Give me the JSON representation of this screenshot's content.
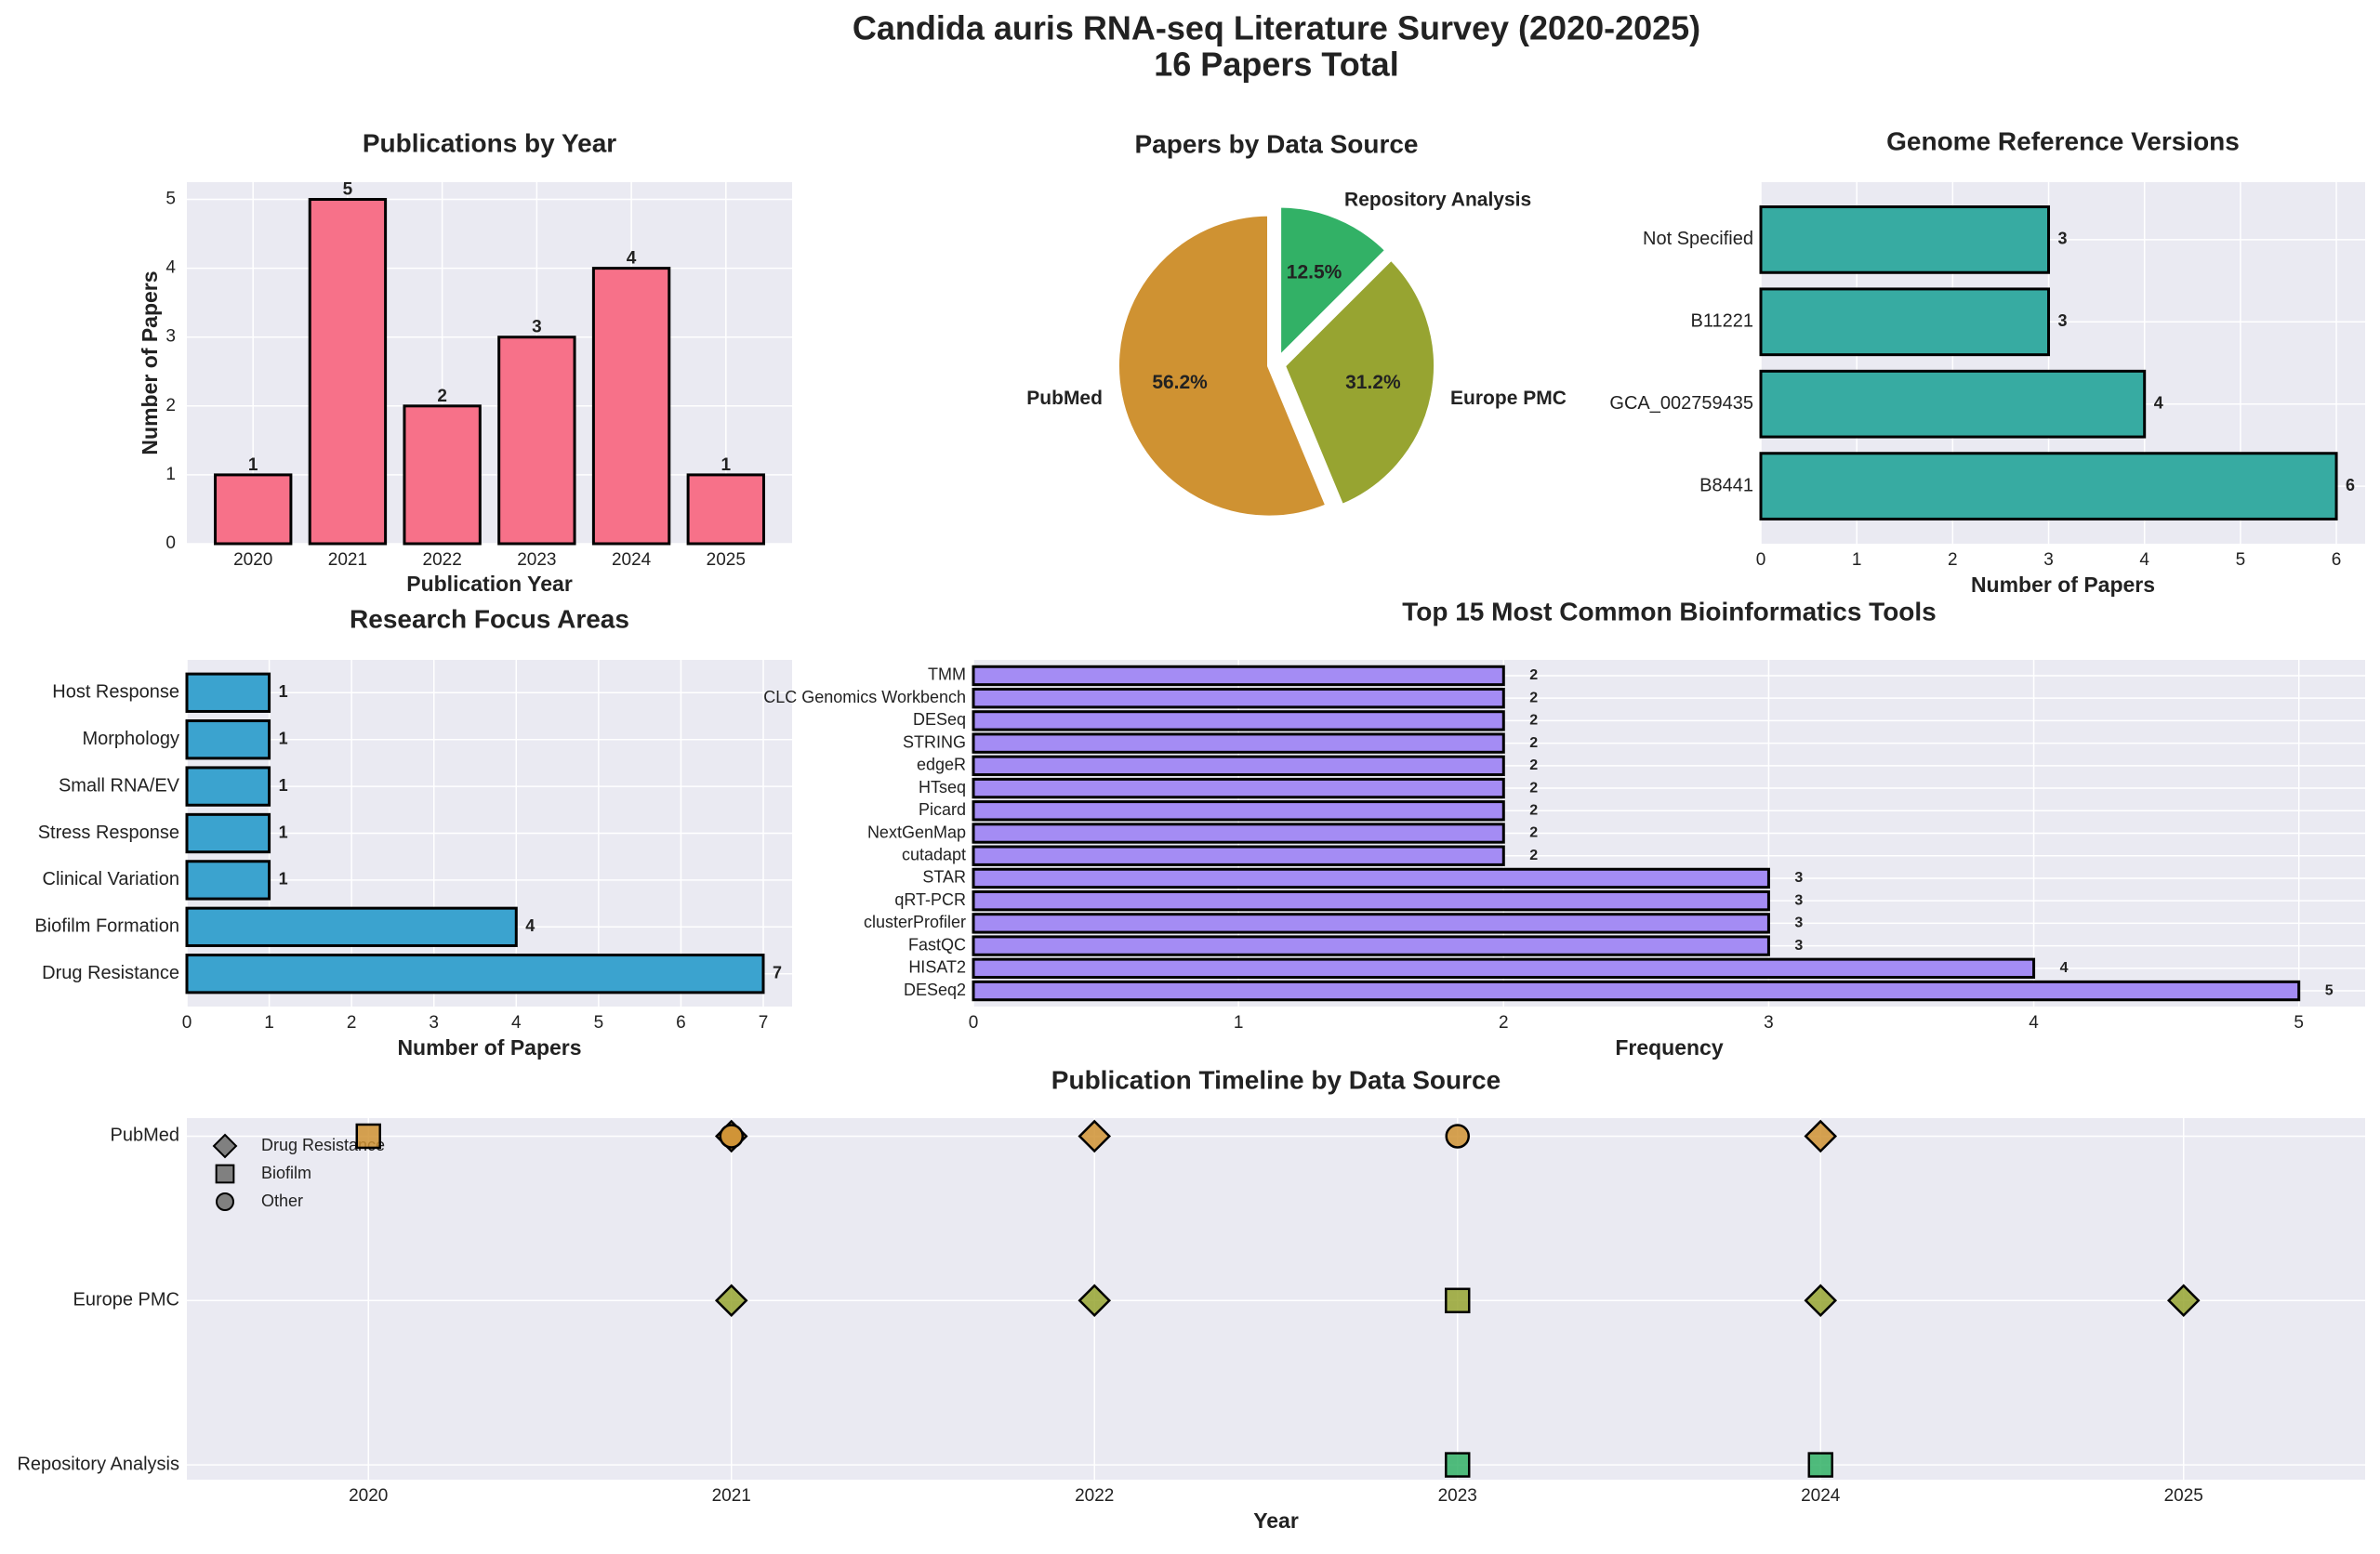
{
  "title": "Candida auris RNA-seq Literature Survey (2020-2025)",
  "subtitle": "16 Papers Total",
  "chart_data": [
    {
      "type": "bar",
      "title": "Publications by Year",
      "categories": [
        "2020",
        "2021",
        "2022",
        "2023",
        "2024",
        "2025"
      ],
      "values": [
        1,
        5,
        2,
        3,
        4,
        1
      ],
      "color": "#f77189",
      "ylim": [
        0,
        5.25
      ],
      "yticks": [
        0,
        1,
        2,
        3,
        4,
        5
      ],
      "xlabel": "Publication Year",
      "ylabel": "Number of Papers",
      "grid": true
    },
    {
      "type": "pie",
      "title": "Papers by Data Source",
      "labels": [
        "PubMed",
        "Europe PMC",
        "Repository Analysis"
      ],
      "values": [
        56.2,
        31.2,
        12.5
      ],
      "value_labels": [
        "56.2%",
        "31.2%",
        "12.5%"
      ],
      "colors": [
        "#cf9232",
        "#97a431",
        "#32b166"
      ]
    },
    {
      "type": "barh",
      "title": "Genome Reference Versions",
      "categories": [
        "B8441",
        "GCA_002759435",
        "B11221",
        "Not Specified"
      ],
      "values": [
        6,
        4,
        3,
        3
      ],
      "color": "#37aba2",
      "xlim": [
        0,
        6.3
      ],
      "xticks": [
        0,
        1,
        2,
        3,
        4,
        5,
        6
      ],
      "xlabel": "Number of Papers",
      "grid": true
    },
    {
      "type": "barh",
      "title": "Research Focus Areas",
      "categories": [
        "Drug Resistance",
        "Biofilm Formation",
        "Clinical Variation",
        "Stress Response",
        "Small RNA/EV",
        "Morphology",
        "Host Response"
      ],
      "values": [
        7,
        4,
        1,
        1,
        1,
        1,
        1
      ],
      "color": "#3ba3cf",
      "xlim": [
        0,
        7.35
      ],
      "xticks": [
        0,
        1,
        2,
        3,
        4,
        5,
        6,
        7
      ],
      "xlabel": "Number of Papers",
      "grid": true
    },
    {
      "type": "barh",
      "title": "Top 15 Most Common Bioinformatics Tools",
      "categories": [
        "DESeq2",
        "HISAT2",
        "FastQC",
        "clusterProfiler",
        "qRT-PCR",
        "STAR",
        "cutadapt",
        "NextGenMap",
        "Picard",
        "HTseq",
        "edgeR",
        "STRING",
        "DESeq",
        "CLC Genomics Workbench",
        "TMM"
      ],
      "values": [
        5,
        4,
        3,
        3,
        3,
        3,
        2,
        2,
        2,
        2,
        2,
        2,
        2,
        2,
        2
      ],
      "color": "#a48cf4",
      "xlim": [
        0,
        5.25
      ],
      "xticks": [
        0,
        1,
        2,
        3,
        4,
        5
      ],
      "xlabel": "Frequency",
      "grid": true
    },
    {
      "type": "scatter",
      "title": "Publication Timeline by Data Source",
      "xlim": [
        2019.5,
        2025.5
      ],
      "xticks": [
        2020,
        2021,
        2022,
        2023,
        2024,
        2025
      ],
      "categories": [
        "PubMed",
        "Europe PMC",
        "Repository Analysis"
      ],
      "category_colors": [
        "#cf9232",
        "#97a431",
        "#32b166"
      ],
      "xlabel": "Year",
      "grid": true,
      "legend": "upper left",
      "series": [
        {
          "name": "Drug Resistance",
          "marker": "diamond",
          "x": [
            2021,
            2022,
            2024,
            2021,
            2022,
            2024,
            2025
          ],
          "y": [
            "PubMed",
            "PubMed",
            "PubMed",
            "Europe PMC",
            "Europe PMC",
            "Europe PMC",
            "Europe PMC"
          ]
        },
        {
          "name": "Biofilm",
          "marker": "square",
          "x": [
            2020,
            2023,
            2023,
            2024
          ],
          "y": [
            "PubMed",
            "Europe PMC",
            "Repository Analysis",
            "Repository Analysis"
          ]
        },
        {
          "name": "Other",
          "marker": "circle",
          "x": [
            2021,
            2023
          ],
          "y": [
            "PubMed",
            "PubMed"
          ]
        }
      ]
    }
  ]
}
